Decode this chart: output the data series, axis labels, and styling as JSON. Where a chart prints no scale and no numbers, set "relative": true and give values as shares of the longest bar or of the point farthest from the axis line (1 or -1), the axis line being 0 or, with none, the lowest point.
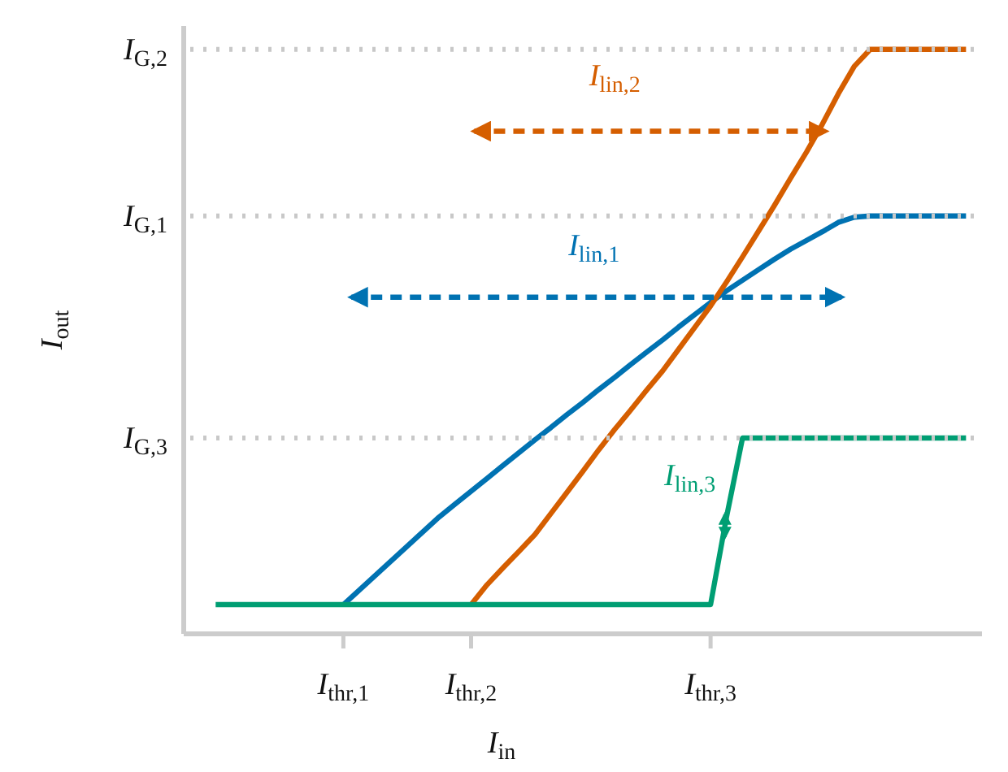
{
  "chart_data": {
    "type": "line",
    "xlabel": "I$_{in}$",
    "ylabel": "I$_{out}$",
    "relative": true,
    "marker": "none",
    "line_style": "solid",
    "categories": [
      null,
      null,
      null,
      null,
      null,
      null,
      null,
      null,
      "I$_{thr,1}$",
      null,
      null,
      null,
      null,
      null,
      null,
      null,
      "I$_{thr,2}$",
      null,
      null,
      null,
      null,
      null,
      null,
      null,
      null,
      null,
      null,
      null,
      null,
      null,
      null,
      "I$_{thr,3}$",
      null,
      null,
      null,
      null,
      null,
      null,
      null,
      null,
      null,
      null,
      null,
      null,
      null,
      null,
      null,
      null
    ],
    "series": [
      {
        "color": "#0072b2",
        "values": [
          null,
          null,
          null,
          null,
          null,
          null,
          null,
          null,
          0.05,
          0.075,
          0.1,
          0.125,
          0.15,
          0.175,
          0.2,
          0.222,
          0.244,
          0.266,
          0.288,
          0.31,
          0.332,
          0.353,
          0.375,
          0.396,
          0.418,
          0.439,
          0.461,
          0.482,
          0.503,
          0.525,
          0.546,
          0.567,
          0.587,
          0.605,
          0.623,
          0.641,
          0.658,
          0.673,
          0.688,
          0.704,
          0.713,
          0.715,
          0.715,
          0.715,
          0.715,
          0.715,
          0.715,
          0.715
        ]
      },
      {
        "color": "#d55e00",
        "values": [
          null,
          null,
          null,
          null,
          null,
          null,
          null,
          null,
          null,
          null,
          null,
          null,
          null,
          null,
          null,
          null,
          0.05,
          0.084,
          0.113,
          0.141,
          0.17,
          0.206,
          0.242,
          0.278,
          0.315,
          0.35,
          0.383,
          0.417,
          0.45,
          0.487,
          0.524,
          0.561,
          0.602,
          0.645,
          0.689,
          0.733,
          0.779,
          0.824,
          0.872,
          0.924,
          0.971,
          1,
          1,
          1,
          1,
          1,
          1,
          1
        ]
      },
      {
        "color": "#009e73",
        "values": [
          0.05,
          0.05,
          0.05,
          0.05,
          0.05,
          0.05,
          0.05,
          0.05,
          0.05,
          0.05,
          0.05,
          0.05,
          0.05,
          0.05,
          0.05,
          0.05,
          0.05,
          0.05,
          0.05,
          0.05,
          0.05,
          0.05,
          0.05,
          0.05,
          0.05,
          0.05,
          0.05,
          0.05,
          0.05,
          0.05,
          0.05,
          0.05,
          0.2,
          0.335,
          0.335,
          0.335,
          0.335,
          0.335,
          0.335,
          0.335,
          0.335,
          0.335,
          0.335,
          0.335,
          0.335,
          0.335,
          0.335,
          0.335
        ]
      }
    ],
    "ref_lines": [
      {
        "axis": "y",
        "value": 0.335,
        "label": "I$_{G,3}$",
        "color": "#c8c8c8",
        "line_style": "dotted"
      },
      {
        "axis": "y",
        "value": 0.715,
        "label": "I$_{G,1}$",
        "color": "#c8c8c8",
        "line_style": "dotted"
      },
      {
        "axis": "y",
        "value": 1,
        "label": "I$_{G,2}$",
        "color": "#c8c8c8",
        "line_style": "dotted"
      }
    ],
    "annotations": [
      "I$_{lin,1}$",
      "I$_{lin,2}$",
      "I$_{lin,3}$"
    ]
  }
}
